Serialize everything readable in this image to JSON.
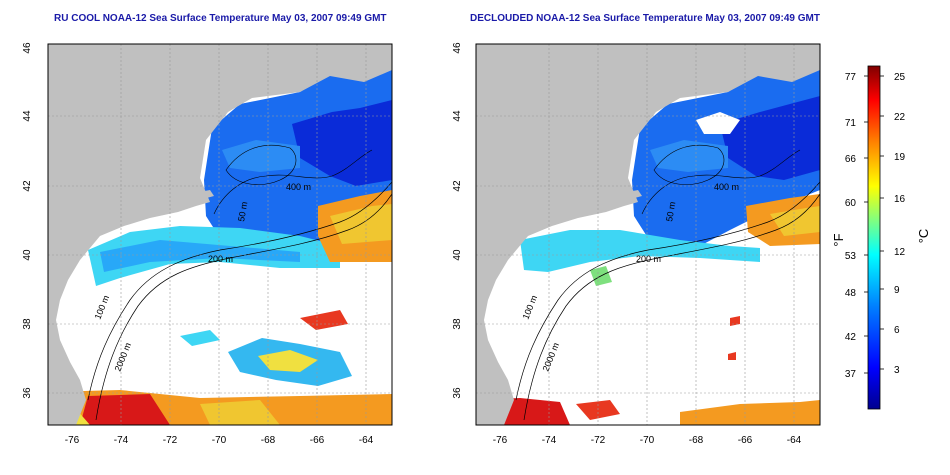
{
  "panels": [
    {
      "title": "RU COOL NOAA-12 Sea Surface Temperature May 03, 2007 09:49 GMT"
    },
    {
      "title": "DECLOUDED NOAA-12 Sea Surface Temperature May 03, 2007 09:49 GMT"
    }
  ],
  "axes": {
    "lon_ticks": [
      "-76",
      "-74",
      "-72",
      "-70",
      "-68",
      "-66",
      "-64"
    ],
    "lat_ticks": [
      "46",
      "44",
      "42",
      "40",
      "38",
      "36"
    ],
    "lon_range": [
      -77,
      -63
    ],
    "lat_range": [
      35,
      46
    ]
  },
  "contours": {
    "label_200": "200 m",
    "label_400": "400 m",
    "label_2000": "2000 m",
    "label_100": "100 m",
    "label_50": "50 m"
  },
  "colorbar": {
    "fahrenheit_ticks": [
      "77",
      "71",
      "66",
      "60",
      "53",
      "48",
      "42",
      "37"
    ],
    "celsius_ticks": [
      "25",
      "22",
      "19",
      "16",
      "12",
      "9",
      "6",
      "3"
    ],
    "fahrenheit_label": "°F",
    "celsius_label": "°C",
    "colors": [
      "#00008f",
      "#0000ff",
      "#0080ff",
      "#00ffff",
      "#80ff80",
      "#ffff00",
      "#ff8000",
      "#ff0000",
      "#800000"
    ]
  },
  "colors": {
    "land": "#c0c0c0",
    "cloud": "#ffffff",
    "title": "#1a1aa8"
  }
}
